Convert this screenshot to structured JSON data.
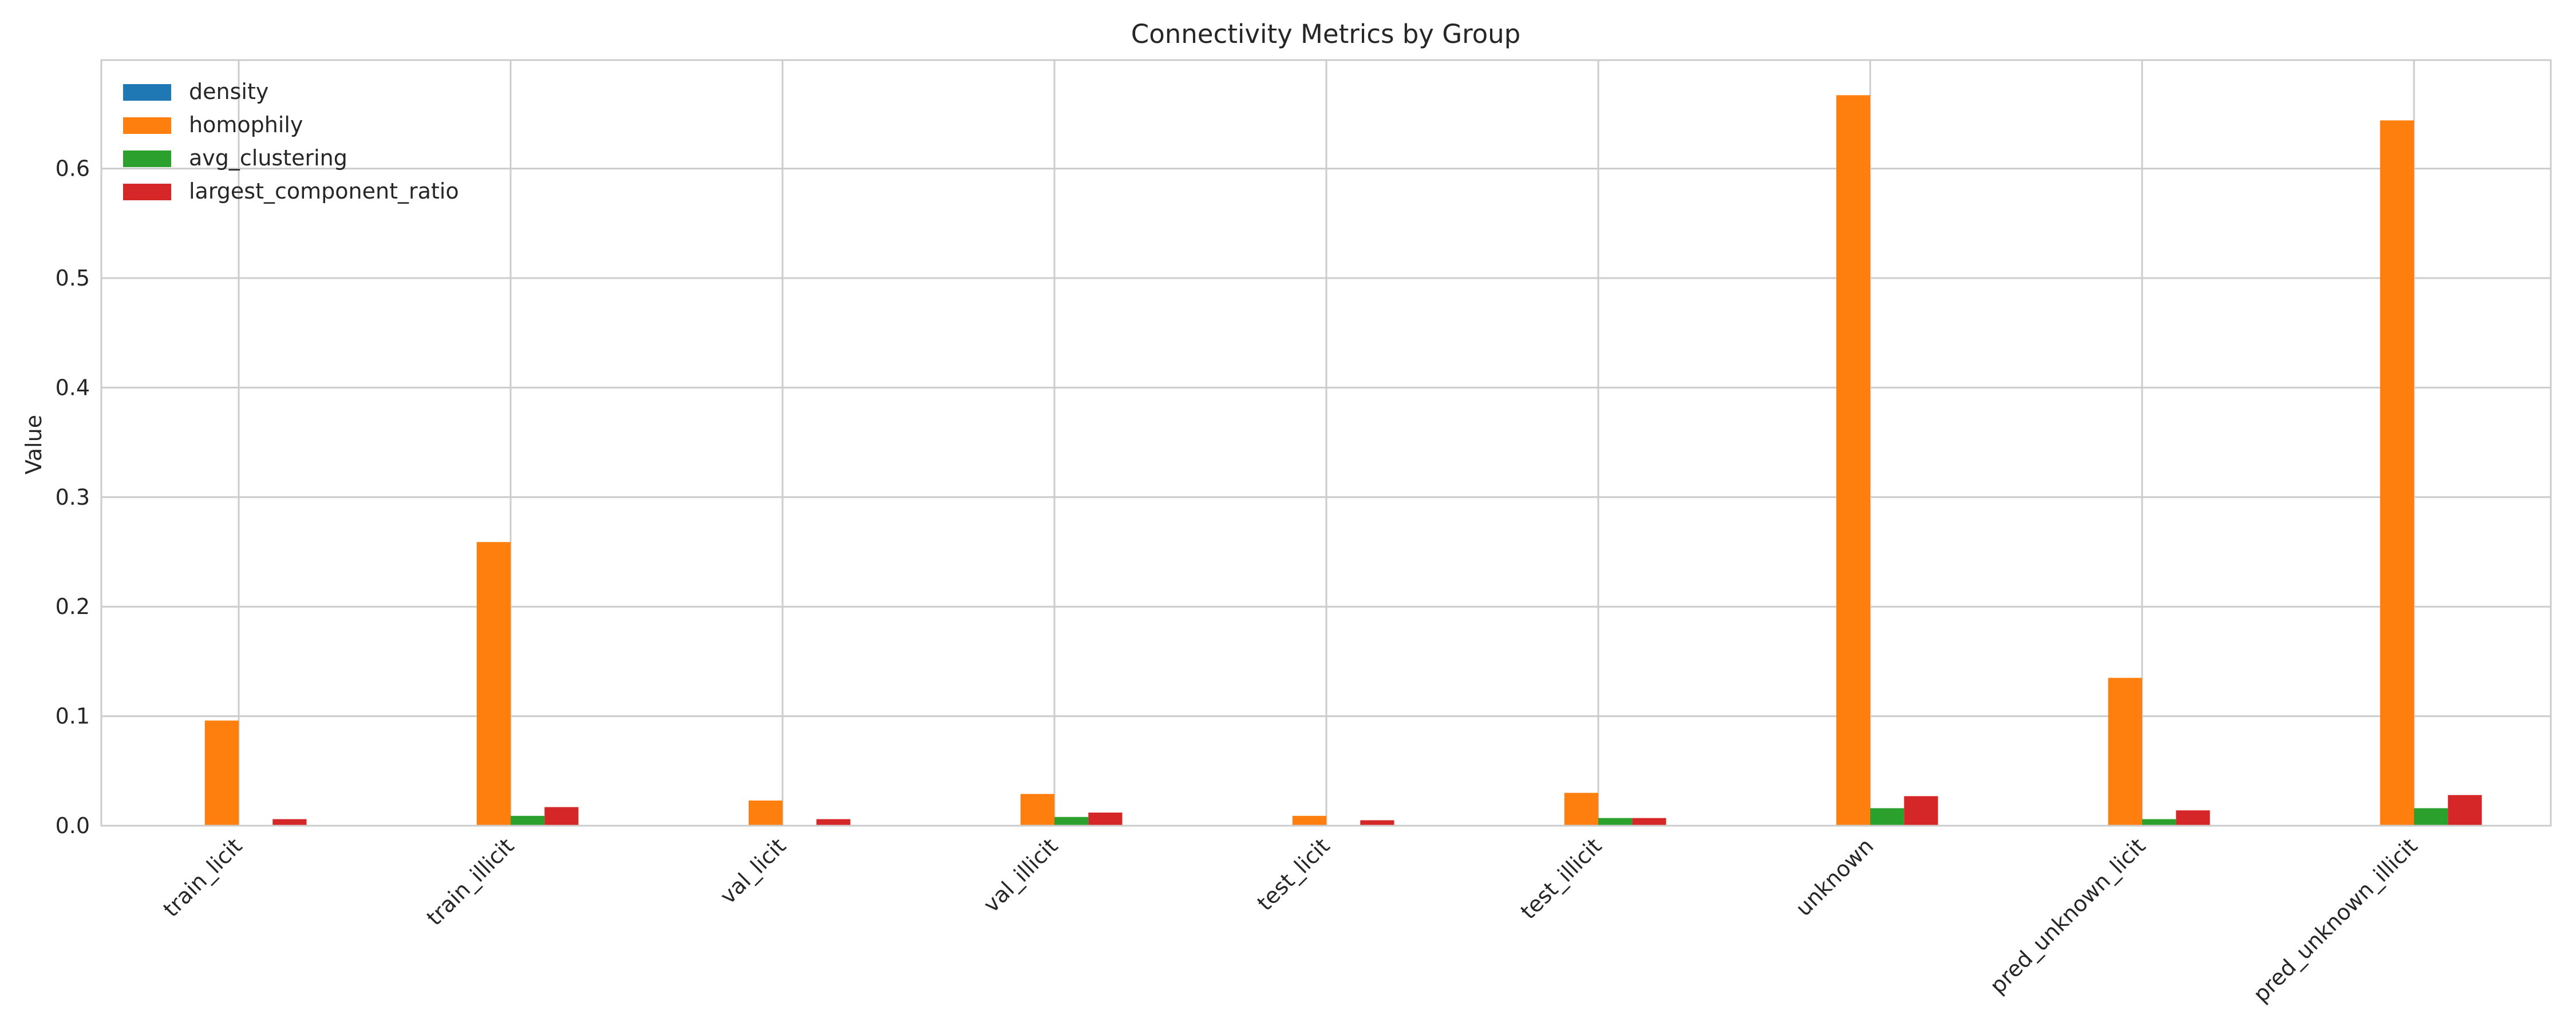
{
  "chart_data": {
    "type": "bar",
    "title": "Connectivity Metrics by Group",
    "xlabel": "",
    "ylabel": "Value",
    "ylim": [
      0,
      0.7
    ],
    "yticks": [
      "0.0",
      "0.1",
      "0.2",
      "0.3",
      "0.4",
      "0.5",
      "0.6"
    ],
    "grid": true,
    "legend_position": "top-left",
    "categories": [
      "train_licit",
      "train_illicit",
      "val_licit",
      "val_illicit",
      "test_licit",
      "test_illicit",
      "unknown",
      "pred_unknown_licit",
      "pred_unknown_illicit"
    ],
    "series": [
      {
        "name": "density",
        "color": "#1f77b4",
        "values": [
          0.0,
          0.0,
          0.0,
          0.0,
          0.0,
          0.0,
          0.0,
          0.0,
          0.0
        ]
      },
      {
        "name": "homophily",
        "color": "#ff7f0e",
        "values": [
          0.096,
          0.259,
          0.023,
          0.029,
          0.009,
          0.03,
          0.667,
          0.135,
          0.644
        ]
      },
      {
        "name": "avg_clustering",
        "color": "#2ca02c",
        "values": [
          0.0,
          0.009,
          0.0,
          0.008,
          0.0,
          0.007,
          0.016,
          0.006,
          0.016
        ]
      },
      {
        "name": "largest_component_ratio",
        "color": "#d62728",
        "values": [
          0.006,
          0.017,
          0.006,
          0.012,
          0.005,
          0.007,
          0.027,
          0.014,
          0.028
        ]
      }
    ]
  }
}
